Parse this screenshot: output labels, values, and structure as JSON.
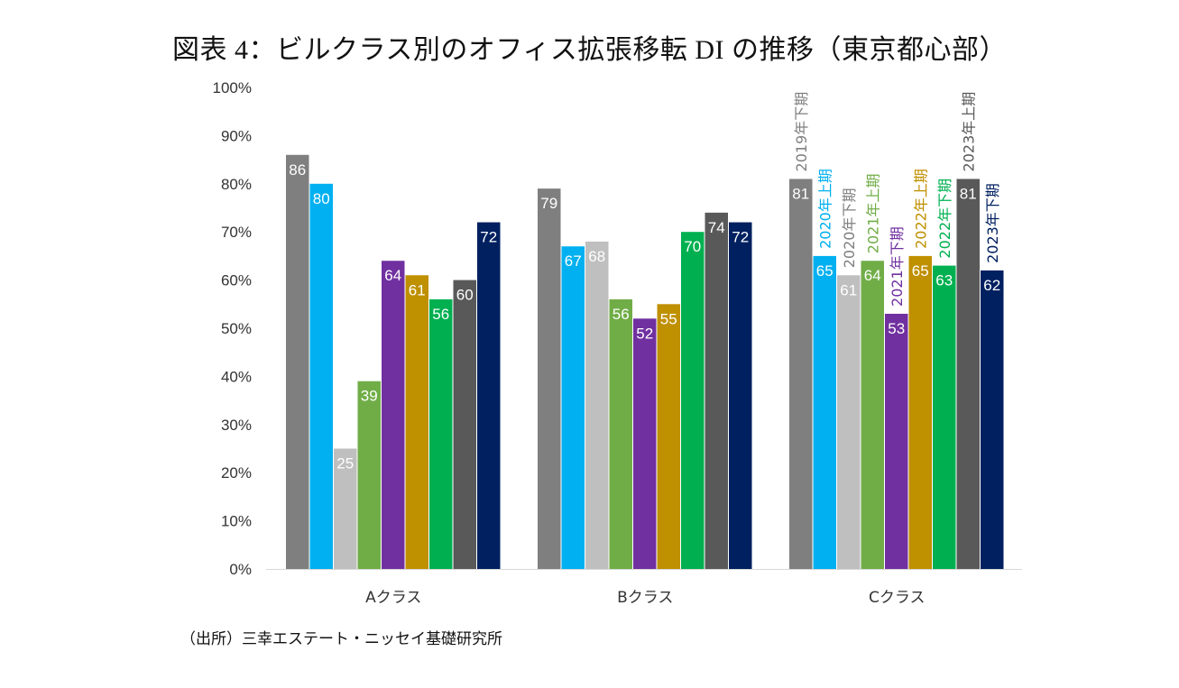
{
  "chart_data": {
    "type": "bar",
    "title": "図表 4：ビルクラス別のオフィス拡張移転 DI の推移（東京都心部）",
    "source": "（出所）三幸エステート・ニッセイ基礎研究所",
    "xlabel": "",
    "ylabel": "",
    "ylim": [
      0,
      100
    ],
    "y_ticks": [
      "0%",
      "10%",
      "20%",
      "30%",
      "40%",
      "50%",
      "60%",
      "70%",
      "80%",
      "90%",
      "100%"
    ],
    "grid": false,
    "legend": "inline labels above C-class bars",
    "categories": [
      "Aクラス",
      "Bクラス",
      "Cクラス"
    ],
    "series": [
      {
        "name": "2019年下期",
        "color": "#7f7f7f",
        "values": [
          86,
          79,
          81
        ]
      },
      {
        "name": "2020年上期",
        "color": "#00b0f0",
        "values": [
          80,
          67,
          65
        ]
      },
      {
        "name": "2020年下期",
        "color": "#bfbfbf",
        "values": [
          25,
          68,
          61
        ]
      },
      {
        "name": "2021年上期",
        "color": "#70ad47",
        "values": [
          39,
          56,
          64
        ]
      },
      {
        "name": "2021年下期",
        "color": "#7030a0",
        "values": [
          64,
          52,
          53
        ]
      },
      {
        "name": "2022年上期",
        "color": "#bf9000",
        "values": [
          61,
          55,
          65
        ]
      },
      {
        "name": "2022年下期",
        "color": "#00b050",
        "values": [
          56,
          70,
          63
        ]
      },
      {
        "name": "2023年上期",
        "color": "#595959",
        "values": [
          60,
          74,
          81
        ]
      },
      {
        "name": "2023年下期",
        "color": "#002060",
        "values": [
          72,
          72,
          62
        ]
      }
    ]
  }
}
